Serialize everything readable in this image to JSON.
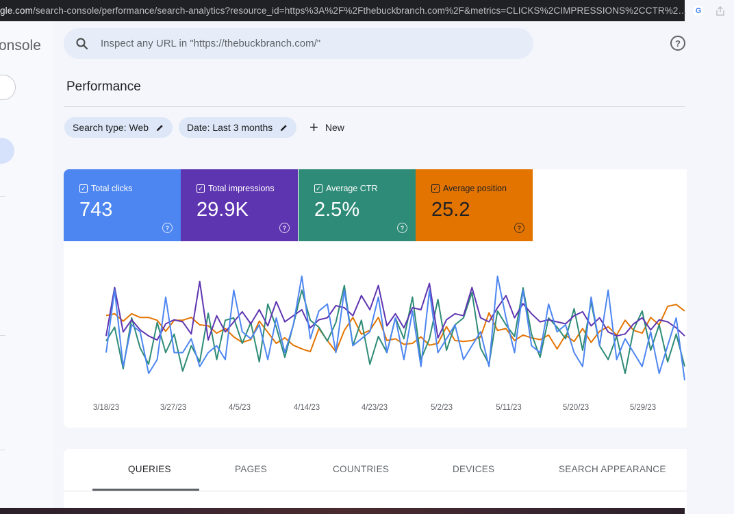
{
  "browser": {
    "url_domain": "gle.com",
    "url_path": "/search-console/performance/search-analytics?resource_id=https%3A%2F%2Fthebuckbranch.com%2F&metrics=CLICKS%2CIMPRESSIONS%2CCTR%2…"
  },
  "sidebar": {
    "brand": "onsole"
  },
  "search": {
    "placeholder": "Inspect any URL in \"https://thebuckbranch.com/\""
  },
  "page_title": "Performance",
  "filters": {
    "search_type": "Search type: Web",
    "date": "Date: Last 3 months",
    "new_label": "New"
  },
  "metrics": [
    {
      "label": "Total clicks",
      "value": "743",
      "color": "#4d86f0"
    },
    {
      "label": "Total impressions",
      "value": "29.9K",
      "color": "#5e35b1"
    },
    {
      "label": "Average CTR",
      "value": "2.5%",
      "color": "#2e8b77"
    },
    {
      "label": "Average position",
      "value": "25.2",
      "color": "#e37400"
    }
  ],
  "chart_data": {
    "type": "line",
    "x_tick_labels": [
      "3/18/23",
      "3/27/23",
      "4/5/23",
      "4/14/23",
      "4/23/23",
      "5/2/23",
      "5/11/23",
      "5/20/23",
      "5/29/23"
    ],
    "y_axis_shown": false,
    "grid": false,
    "series": [
      {
        "name": "Total clicks",
        "color": "#4d86f0",
        "values": [
          3,
          12,
          1,
          7,
          6,
          0,
          2,
          11,
          3,
          3,
          5,
          1,
          3,
          4,
          2,
          12,
          6,
          5,
          7,
          2,
          8,
          3,
          7,
          14,
          5,
          9,
          10,
          3,
          12,
          4,
          5,
          6,
          11,
          3,
          8,
          2,
          9,
          1,
          12,
          3,
          5,
          7,
          2,
          4,
          6,
          1,
          14,
          8,
          3,
          12,
          4,
          3,
          10,
          6,
          7,
          3,
          1,
          11,
          4,
          12,
          2,
          5,
          3,
          1,
          6,
          0,
          4,
          8,
          -1
        ]
      },
      {
        "name": "Total impressions",
        "color": "#5e35b1",
        "values": [
          6.2,
          8.6,
          6.4,
          7.0,
          6.5,
          6.2,
          6.0,
          6.8,
          7.0,
          6.9,
          6.3,
          8.9,
          6.0,
          7.2,
          6.4,
          6.9,
          7.4,
          6.8,
          7.5,
          6.7,
          7.9,
          6.9,
          7.2,
          7.5,
          6.6,
          7.0,
          7.1,
          7.7,
          7.6,
          7.2,
          8.2,
          7.5,
          8.7,
          6.7,
          7.3,
          6.6,
          7.6,
          7.5,
          8.8,
          6.1,
          7.0,
          7.3,
          7.2,
          8.6,
          7.1,
          6.9,
          7.6,
          8.2,
          7.1,
          7.8,
          7.3,
          6.9,
          7.0,
          6.9,
          6.8,
          7.2,
          7.4,
          6.7,
          7.1,
          6.4,
          6.2,
          6.3,
          6.8,
          7.1,
          6.5,
          7.0,
          6.9,
          6.6,
          6.2
        ]
      },
      {
        "name": "Average CTR",
        "color": "#2e8b77",
        "values": [
          2.5,
          3.1,
          1.3,
          3.5,
          2.2,
          1.5,
          3.3,
          2.0,
          2.8,
          1.2,
          2.3,
          1.6,
          3.7,
          1.7,
          3.4,
          3.5,
          2.4,
          3.3,
          1.6,
          4.1,
          3.1,
          1.8,
          3.2,
          4.7,
          3.4,
          3.1,
          2.5,
          3.3,
          4.9,
          2.3,
          3.4,
          1.5,
          2.7,
          2.0,
          3.5,
          2.6,
          4.4,
          1.7,
          2.6,
          4.3,
          2.1,
          3.2,
          3.5,
          4.6,
          2.2,
          1.5,
          3.8,
          3.2,
          2.7,
          4.8,
          2.8,
          1.8,
          3.5,
          3.1,
          2.6,
          3.9,
          2.1,
          4.2,
          2.3,
          1.7,
          2.7,
          1.1,
          3.0,
          3.8,
          2.1,
          3.2,
          1.6,
          2.8,
          1.4
        ]
      },
      {
        "name": "Average position",
        "color": "#e37400",
        "values": [
          25,
          25.2,
          24.4,
          25.2,
          24.8,
          24.8,
          24.5,
          23.3,
          24.5,
          24.5,
          24.8,
          24.0,
          23.9,
          23.1,
          23.6,
          22.7,
          22.1,
          22.4,
          24.4,
          23.2,
          22.0,
          22.6,
          21.8,
          21.4,
          21.1,
          23.6,
          22.3,
          21.1,
          23.4,
          24.8,
          23.0,
          23.4,
          24.8,
          22.3,
          22.5,
          21.9,
          22.0,
          22.7,
          21.8,
          22.0,
          23.8,
          22.3,
          22.2,
          22.3,
          22.7,
          25.3,
          23.4,
          23.6,
          22.3,
          22.9,
          22.6,
          22.4,
          22.9,
          21.4,
          22.9,
          22.2,
          23.6,
          22.1,
          23.3,
          23.8,
          22.9,
          24.5,
          23.4,
          23.1,
          24.8,
          24.0,
          26.0,
          26.2,
          25.5
        ]
      }
    ]
  },
  "tabs": [
    "QUERIES",
    "PAGES",
    "COUNTRIES",
    "DEVICES",
    "SEARCH APPEARANCE"
  ]
}
